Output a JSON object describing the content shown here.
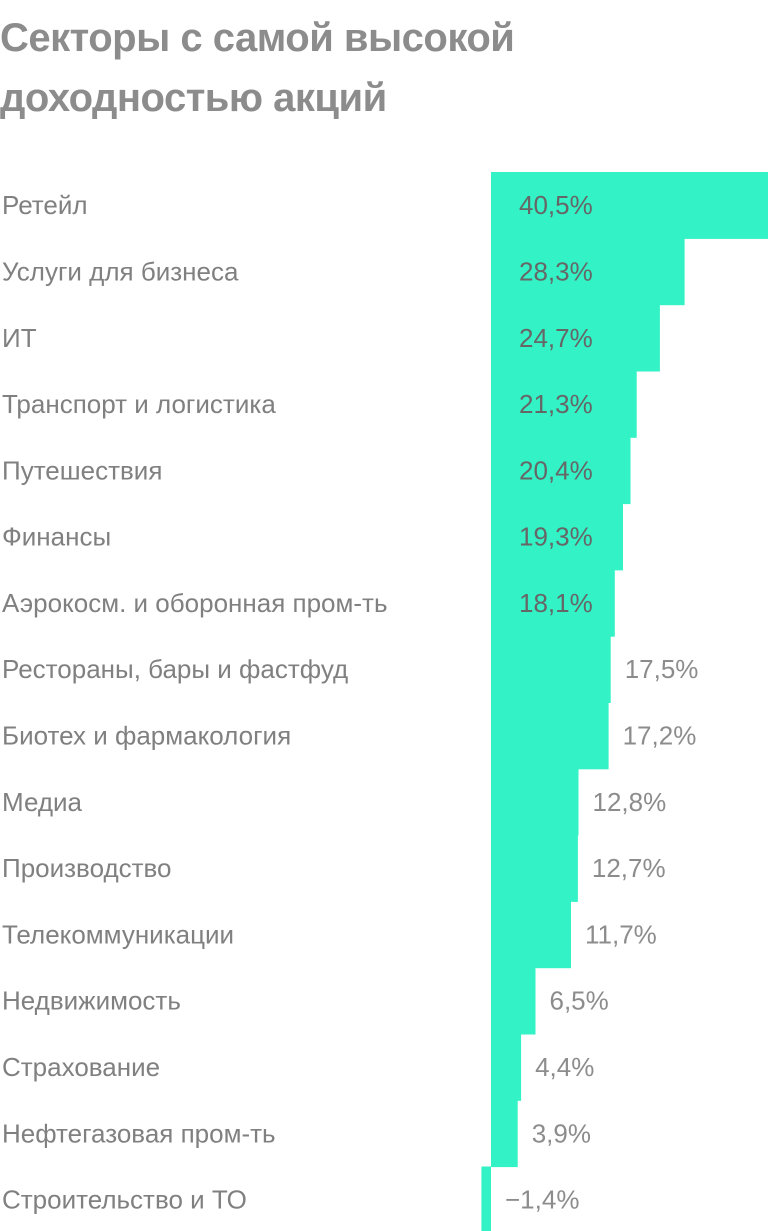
{
  "title": "Секторы с самой высокой доходностью акций",
  "colors": {
    "bar": "#33f2c6",
    "category_text": "#808080",
    "value_text_inside": "#666666",
    "value_text_outside": "#8c8c8c",
    "title_text": "#8c8c8c"
  },
  "chart_data": {
    "type": "bar",
    "orientation": "horizontal",
    "title": "Секторы с самой высокой доходностью акций",
    "xlabel": "",
    "ylabel": "",
    "unit": "%",
    "categories": [
      "Ретейл",
      "Услуги для бизнеса",
      "ИТ",
      "Транспорт и логистика",
      "Путешествия",
      "Финансы",
      "Аэрокосм. и оборонная пром-ть",
      "Рестораны, бары и фастфуд",
      "Биотех и фармакология",
      "Медиа",
      "Производство",
      "Телекоммуникации",
      "Недвижимость",
      "Страхование",
      "Нефтегазовая пром-ть",
      "Строительство и ТО"
    ],
    "values": [
      40.5,
      28.3,
      24.7,
      21.3,
      20.4,
      19.3,
      18.1,
      17.5,
      17.2,
      12.8,
      12.7,
      11.7,
      6.5,
      4.4,
      3.9,
      -1.4
    ],
    "value_labels": [
      "40,5%",
      "28,3%",
      "24,7%",
      "21,3%",
      "20,4%",
      "19,3%",
      "18,1%",
      "17,5%",
      "17,2%",
      "12,8%",
      "12,7%",
      "11,7%",
      "6,5%",
      "4,4%",
      "3,9%",
      "−1,4%"
    ],
    "grid": false,
    "legend": "none"
  }
}
